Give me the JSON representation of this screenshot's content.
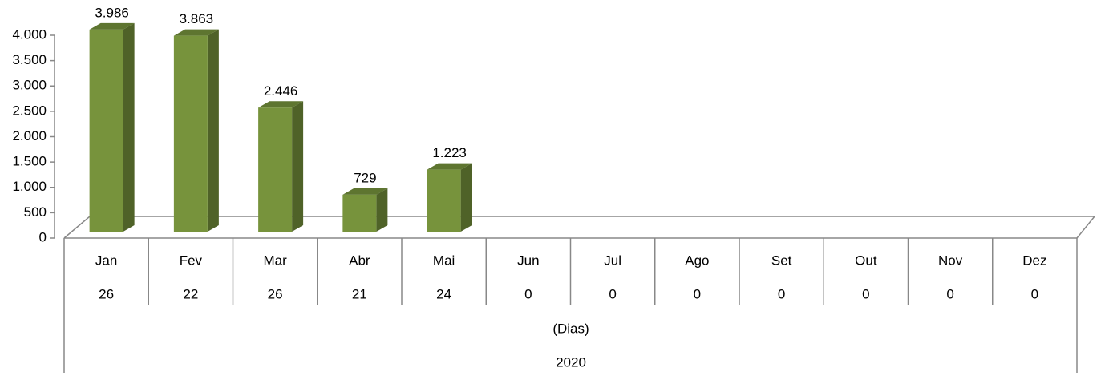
{
  "chart_data": {
    "type": "bar3d",
    "categories": [
      "Jan",
      "Fev",
      "Mar",
      "Abr",
      "Mai",
      "Jun",
      "Jul",
      "Ago",
      "Set",
      "Out",
      "Nov",
      "Dez"
    ],
    "days": [
      26,
      22,
      26,
      21,
      24,
      0,
      0,
      0,
      0,
      0,
      0,
      0
    ],
    "days_label": "(Dias)",
    "year": "2020",
    "values": [
      3986,
      3863,
      2446,
      729,
      1223,
      null,
      null,
      null,
      null,
      null,
      null,
      null
    ],
    "value_labels": [
      "3.986",
      "3.863",
      "2.446",
      "729",
      "1.223",
      null,
      null,
      null,
      null,
      null,
      null,
      null
    ],
    "color": "#77933c",
    "ylim": [
      0,
      4000
    ],
    "yticks": [
      0,
      500,
      {
        "value": 1000,
        "label": "1.000"
      },
      {
        "value": 1500,
        "label": "1.500"
      },
      {
        "value": 2000,
        "label": "2.000"
      },
      {
        "value": 2500,
        "label": "2.500"
      },
      {
        "value": 3000,
        "label": "3.000"
      },
      {
        "value": 3500,
        "label": "3.500"
      },
      {
        "value": 4000,
        "label": "4.000"
      }
    ]
  }
}
